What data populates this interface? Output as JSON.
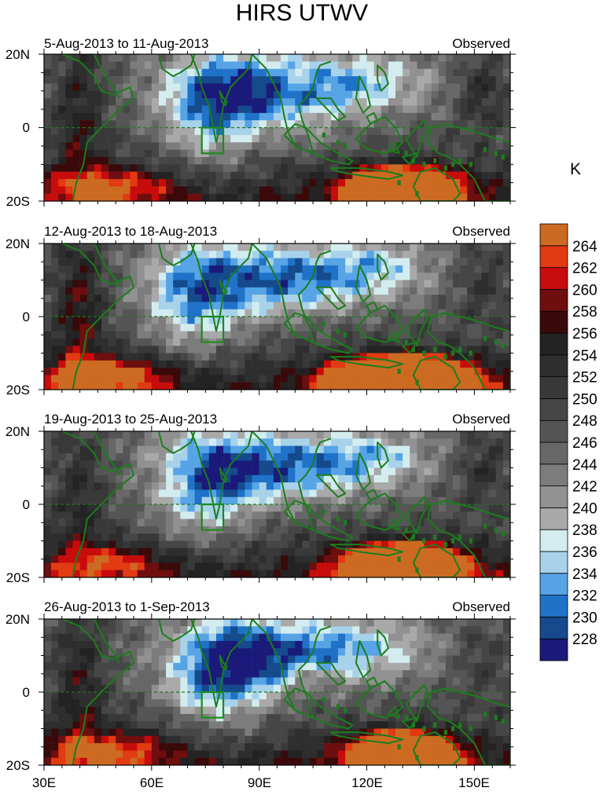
{
  "chart_data": {
    "type": "heatmap",
    "title": "HIRS UTWV",
    "variable": "UTWV brightness temperature",
    "units_label": "K",
    "status_label": "Observed",
    "lon_range": [
      30,
      160
    ],
    "lat_range": [
      -20,
      20
    ],
    "x_ticks": [
      {
        "value": 30,
        "label": "30E"
      },
      {
        "value": 60,
        "label": "60E"
      },
      {
        "value": 90,
        "label": "90E"
      },
      {
        "value": 120,
        "label": "120E"
      },
      {
        "value": 150,
        "label": "150E"
      }
    ],
    "y_ticks": [
      {
        "value": 20,
        "label": "20N"
      },
      {
        "value": 0,
        "label": "0"
      },
      {
        "value": -20,
        "label": "20S"
      }
    ],
    "colorbar": {
      "levels": [
        228,
        230,
        232,
        234,
        236,
        238,
        240,
        242,
        244,
        246,
        248,
        250,
        252,
        254,
        256,
        258,
        260,
        262,
        264
      ],
      "colors": [
        "#1a1a7a",
        "#154a8c",
        "#1f72c8",
        "#56a4e6",
        "#a8d2ea",
        "#d3ecef",
        "#a9a9a9",
        "#919191",
        "#7c7c7c",
        "#676767",
        "#555555",
        "#464646",
        "#393939",
        "#2e2e2e",
        "#232323",
        "#3a0a0a",
        "#6e0e0e",
        "#c80c0c",
        "#e23a12",
        "#cc6a22"
      ]
    },
    "box_region": {
      "lon": [
        74,
        80
      ],
      "lat": [
        -7,
        0
      ]
    },
    "panels": [
      {
        "period": "5-Aug-2013 to 11-Aug-2013"
      },
      {
        "period": "12-Aug-2013 to 18-Aug-2013"
      },
      {
        "period": "19-Aug-2013 to 25-Aug-2013"
      },
      {
        "period": "26-Aug-2013 to 1-Sep-2013"
      }
    ]
  }
}
